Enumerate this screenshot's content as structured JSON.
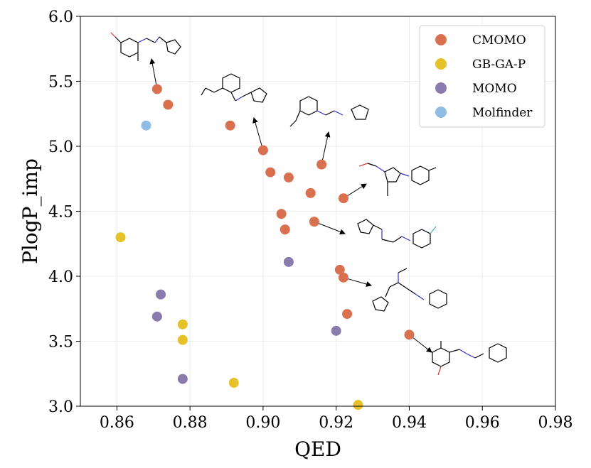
{
  "chart_data": {
    "type": "scatter",
    "xlabel": "QED",
    "ylabel": "PlogP_imp",
    "xlim": [
      0.85,
      0.98
    ],
    "ylim": [
      3.0,
      6.0
    ],
    "xticks": [
      "0.86",
      "0.88",
      "0.90",
      "0.92",
      "0.94",
      "0.96",
      "0.98"
    ],
    "yticks": [
      "3.0",
      "3.5",
      "4.0",
      "4.5",
      "5.0",
      "5.5",
      "6.0"
    ],
    "grid": true,
    "legend_position": "top-right",
    "series": [
      {
        "name": "CMOMO",
        "color": "#d9704f",
        "points": [
          {
            "x": 0.871,
            "y": 5.44
          },
          {
            "x": 0.874,
            "y": 5.32
          },
          {
            "x": 0.891,
            "y": 5.16
          },
          {
            "x": 0.9,
            "y": 4.97
          },
          {
            "x": 0.902,
            "y": 4.8
          },
          {
            "x": 0.907,
            "y": 4.76
          },
          {
            "x": 0.916,
            "y": 4.86
          },
          {
            "x": 0.913,
            "y": 4.64
          },
          {
            "x": 0.922,
            "y": 4.6
          },
          {
            "x": 0.905,
            "y": 4.48
          },
          {
            "x": 0.906,
            "y": 4.36
          },
          {
            "x": 0.914,
            "y": 4.42
          },
          {
            "x": 0.921,
            "y": 4.05
          },
          {
            "x": 0.922,
            "y": 3.99
          },
          {
            "x": 0.923,
            "y": 3.71
          },
          {
            "x": 0.94,
            "y": 3.55
          }
        ]
      },
      {
        "name": "GB-GA-P",
        "color": "#e6c22a",
        "points": [
          {
            "x": 0.861,
            "y": 4.3
          },
          {
            "x": 0.878,
            "y": 3.63
          },
          {
            "x": 0.878,
            "y": 3.51
          },
          {
            "x": 0.892,
            "y": 3.18
          },
          {
            "x": 0.926,
            "y": 3.01
          }
        ]
      },
      {
        "name": "MOMO",
        "color": "#8a7bad",
        "points": [
          {
            "x": 0.872,
            "y": 3.86
          },
          {
            "x": 0.871,
            "y": 3.69
          },
          {
            "x": 0.878,
            "y": 3.21
          },
          {
            "x": 0.907,
            "y": 4.11
          },
          {
            "x": 0.92,
            "y": 3.58
          }
        ]
      },
      {
        "name": "Molfinder",
        "color": "#8fbde3",
        "points": [
          {
            "x": 0.868,
            "y": 5.16
          }
        ]
      }
    ]
  }
}
